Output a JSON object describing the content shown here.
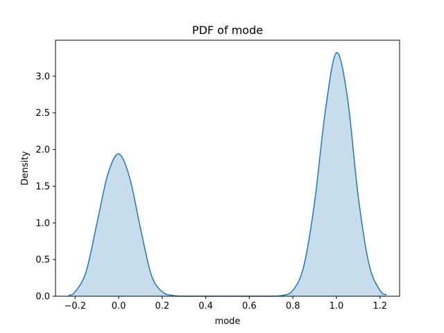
{
  "chart_data": {
    "type": "area",
    "title": "PDF of mode",
    "xlabel": "mode",
    "ylabel": "Density",
    "xlim": [
      -0.29,
      1.29
    ],
    "ylim": [
      0,
      3.49
    ],
    "xticks": [
      -0.2,
      0.0,
      0.2,
      0.4,
      0.6,
      0.8,
      1.0,
      1.2
    ],
    "xtick_labels": [
      "−0.2",
      "0.0",
      "0.2",
      "0.4",
      "0.6",
      "0.8",
      "1.0",
      "1.2"
    ],
    "yticks": [
      0.0,
      0.5,
      1.0,
      1.5,
      2.0,
      2.5,
      3.0
    ],
    "ytick_labels": [
      "0.0",
      "0.5",
      "1.0",
      "1.5",
      "2.0",
      "2.5",
      "3.0"
    ],
    "grid": false,
    "series": [
      {
        "color": "#1f77b4",
        "fill_color": "#1f77b4",
        "fill_opacity": 0.25,
        "x": [
          -0.23,
          -0.2,
          -0.15,
          -0.1,
          -0.05,
          0.0,
          0.05,
          0.1,
          0.15,
          0.2,
          0.25,
          0.3,
          0.4,
          0.5,
          0.6,
          0.7,
          0.75,
          0.8,
          0.85,
          0.9,
          0.95,
          1.0,
          1.05,
          1.1,
          1.15,
          1.2,
          1.23
        ],
        "y": [
          0.01,
          0.06,
          0.33,
          0.99,
          1.66,
          1.94,
          1.62,
          0.93,
          0.29,
          0.06,
          0.01,
          0.0,
          0.0,
          0.0,
          0.0,
          0.0,
          0.01,
          0.08,
          0.41,
          1.29,
          2.55,
          3.32,
          2.72,
          1.36,
          0.43,
          0.08,
          0.02
        ]
      }
    ]
  }
}
